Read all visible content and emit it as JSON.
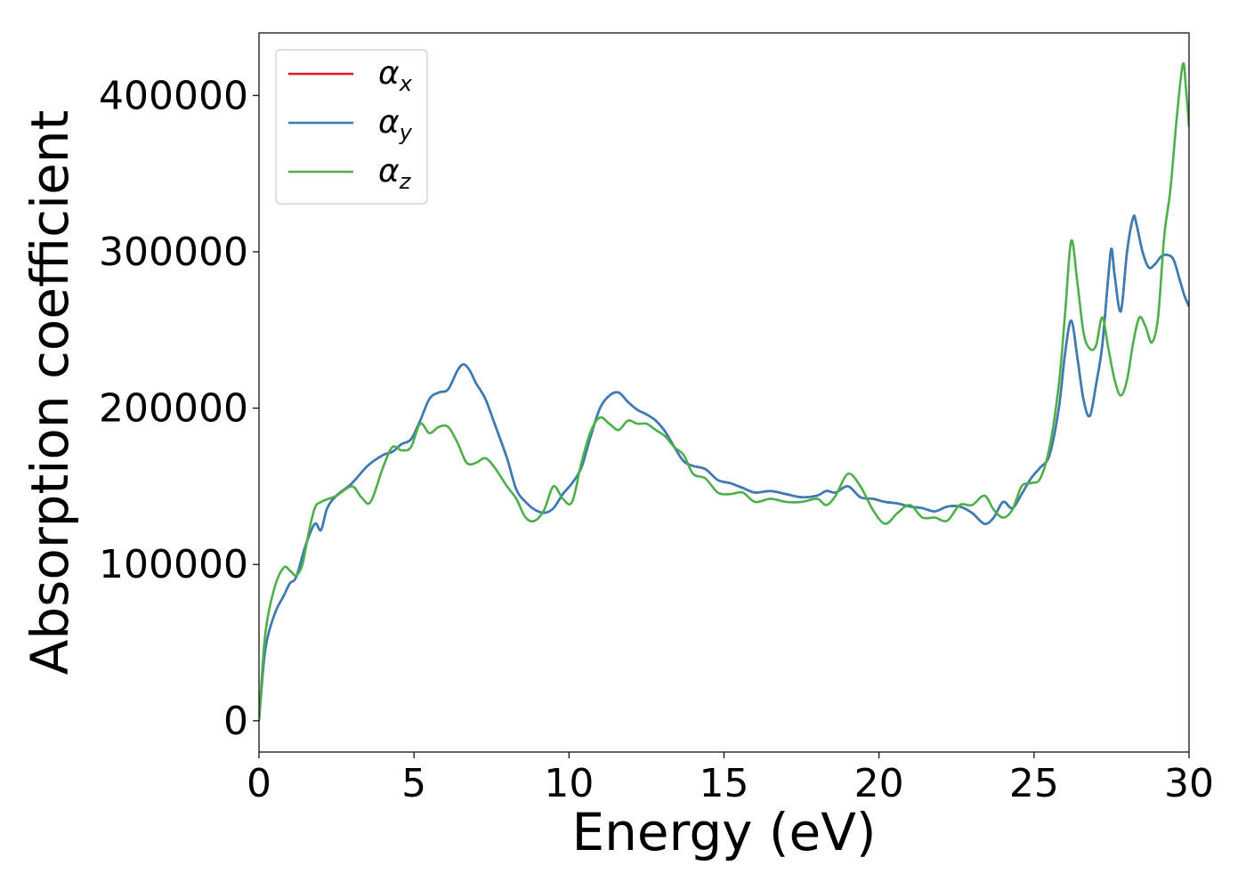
{
  "chart_data": {
    "type": "line",
    "xlabel": "Energy (eV)",
    "ylabel": "Absorption coefficient",
    "xlim": [
      0,
      30
    ],
    "ylim": [
      -20000,
      440000
    ],
    "xticks": [
      0,
      5,
      10,
      15,
      20,
      25,
      30
    ],
    "xtick_labels": [
      "0",
      "5",
      "10",
      "15",
      "20",
      "25",
      "30"
    ],
    "yticks": [
      0,
      100000,
      200000,
      300000,
      400000
    ],
    "ytick_labels": [
      "0",
      "100000",
      "200000",
      "300000",
      "400000"
    ],
    "grid": false,
    "legend_position": "top-left",
    "series": [
      {
        "name": "α",
        "sub": "x",
        "color": "#e41a1c",
        "x": [
          0,
          0.2,
          0.5,
          0.8,
          1.0,
          1.2,
          1.5,
          1.8,
          2.0,
          2.2,
          2.5,
          3.0,
          3.5,
          4.0,
          4.3,
          4.6,
          4.9,
          5.2,
          5.5,
          5.8,
          6.1,
          6.4,
          6.6,
          6.8,
          7.0,
          7.3,
          7.6,
          8.0,
          8.3,
          8.6,
          8.9,
          9.2,
          9.5,
          9.8,
          10.1,
          10.4,
          10.7,
          11.0,
          11.3,
          11.6,
          11.9,
          12.2,
          12.5,
          12.8,
          13.1,
          13.4,
          13.7,
          14.0,
          14.4,
          14.8,
          15.2,
          15.6,
          16.0,
          16.5,
          17.0,
          17.5,
          18.0,
          18.3,
          18.6,
          19.0,
          19.4,
          19.8,
          20.2,
          20.6,
          21.0,
          21.4,
          21.8,
          22.2,
          22.6,
          23.0,
          23.4,
          23.7,
          24.0,
          24.3,
          24.6,
          24.9,
          25.2,
          25.5,
          25.8,
          26.0,
          26.2,
          26.4,
          26.6,
          26.8,
          27.0,
          27.2,
          27.4,
          27.5,
          27.6,
          27.8,
          28.0,
          28.2,
          28.3,
          28.5,
          28.7,
          28.9,
          29.1,
          29.3,
          29.5,
          29.7,
          29.85,
          30.0
        ],
        "y": [
          0,
          45000,
          68000,
          80000,
          88000,
          92000,
          112000,
          126000,
          122000,
          136000,
          144000,
          152000,
          163000,
          170000,
          172000,
          177000,
          180000,
          192000,
          206000,
          210000,
          212000,
          224000,
          228000,
          224000,
          216000,
          206000,
          190000,
          168000,
          148000,
          140000,
          135000,
          133000,
          136000,
          145000,
          152000,
          162000,
          182000,
          200000,
          208000,
          210000,
          204000,
          199000,
          196000,
          192000,
          185000,
          175000,
          166000,
          163000,
          161000,
          154000,
          152000,
          149000,
          146000,
          147000,
          145000,
          143000,
          144000,
          147000,
          146000,
          150000,
          143000,
          142000,
          140000,
          139000,
          137000,
          136000,
          134000,
          137000,
          137000,
          133000,
          126000,
          130000,
          140000,
          136000,
          145000,
          155000,
          162000,
          170000,
          200000,
          235000,
          256000,
          232000,
          205000,
          195000,
          215000,
          240000,
          285000,
          302000,
          285000,
          262000,
          300000,
          322000,
          318000,
          300000,
          290000,
          292000,
          297000,
          298000,
          295000,
          282000,
          272000,
          265000
        ]
      },
      {
        "name": "α",
        "sub": "y",
        "color": "#377eb8",
        "x": [
          0,
          0.2,
          0.5,
          0.8,
          1.0,
          1.2,
          1.5,
          1.8,
          2.0,
          2.2,
          2.5,
          3.0,
          3.5,
          4.0,
          4.3,
          4.6,
          4.9,
          5.2,
          5.5,
          5.8,
          6.1,
          6.4,
          6.6,
          6.8,
          7.0,
          7.3,
          7.6,
          8.0,
          8.3,
          8.6,
          8.9,
          9.2,
          9.5,
          9.8,
          10.1,
          10.4,
          10.7,
          11.0,
          11.3,
          11.6,
          11.9,
          12.2,
          12.5,
          12.8,
          13.1,
          13.4,
          13.7,
          14.0,
          14.4,
          14.8,
          15.2,
          15.6,
          16.0,
          16.5,
          17.0,
          17.5,
          18.0,
          18.3,
          18.6,
          19.0,
          19.4,
          19.8,
          20.2,
          20.6,
          21.0,
          21.4,
          21.8,
          22.2,
          22.6,
          23.0,
          23.4,
          23.7,
          24.0,
          24.3,
          24.6,
          24.9,
          25.2,
          25.5,
          25.8,
          26.0,
          26.2,
          26.4,
          26.6,
          26.8,
          27.0,
          27.2,
          27.4,
          27.5,
          27.6,
          27.8,
          28.0,
          28.2,
          28.3,
          28.5,
          28.7,
          28.9,
          29.1,
          29.3,
          29.5,
          29.7,
          29.85,
          30.0
        ],
        "y": [
          0,
          45000,
          68000,
          80000,
          88000,
          92000,
          112000,
          126000,
          122000,
          136000,
          144000,
          152000,
          163000,
          170000,
          172000,
          177000,
          180000,
          192000,
          206000,
          210000,
          212000,
          224000,
          228000,
          224000,
          216000,
          206000,
          190000,
          168000,
          148000,
          140000,
          135000,
          133000,
          136000,
          145000,
          152000,
          162000,
          182000,
          200000,
          208000,
          210000,
          204000,
          199000,
          196000,
          192000,
          185000,
          175000,
          166000,
          163000,
          161000,
          154000,
          152000,
          149000,
          146000,
          147000,
          145000,
          143000,
          144000,
          147000,
          146000,
          150000,
          143000,
          142000,
          140000,
          139000,
          137000,
          136000,
          134000,
          137000,
          137000,
          133000,
          126000,
          130000,
          140000,
          136000,
          145000,
          155000,
          162000,
          170000,
          200000,
          235000,
          256000,
          232000,
          205000,
          195000,
          215000,
          240000,
          285000,
          302000,
          285000,
          262000,
          300000,
          322000,
          318000,
          300000,
          290000,
          292000,
          297000,
          298000,
          295000,
          282000,
          272000,
          265000
        ]
      },
      {
        "name": "α",
        "sub": "z",
        "color": "#4daf4a",
        "x": [
          0,
          0.2,
          0.5,
          0.8,
          1.0,
          1.2,
          1.4,
          1.6,
          1.8,
          2.0,
          2.5,
          3.0,
          3.3,
          3.6,
          4.0,
          4.3,
          4.6,
          4.9,
          5.2,
          5.5,
          5.8,
          6.1,
          6.4,
          6.7,
          7.0,
          7.3,
          7.6,
          8.0,
          8.3,
          8.6,
          8.9,
          9.2,
          9.5,
          9.8,
          10.1,
          10.4,
          10.7,
          11.0,
          11.3,
          11.6,
          11.9,
          12.2,
          12.5,
          12.8,
          13.1,
          13.4,
          13.7,
          14.0,
          14.4,
          14.8,
          15.2,
          15.6,
          16.0,
          16.5,
          17.0,
          17.5,
          18.0,
          18.3,
          18.6,
          19.0,
          19.4,
          19.8,
          20.2,
          20.6,
          21.0,
          21.4,
          21.8,
          22.2,
          22.6,
          23.0,
          23.4,
          23.7,
          24.0,
          24.3,
          24.6,
          24.9,
          25.2,
          25.5,
          25.8,
          26.0,
          26.2,
          26.4,
          26.6,
          26.8,
          27.0,
          27.2,
          27.4,
          27.6,
          27.8,
          28.0,
          28.2,
          28.4,
          28.6,
          28.8,
          29.0,
          29.2,
          29.4,
          29.6,
          29.8,
          29.9,
          30.0
        ],
        "y": [
          0,
          55000,
          85000,
          98000,
          96000,
          93000,
          100000,
          120000,
          136000,
          140000,
          144000,
          150000,
          143000,
          140000,
          162000,
          175000,
          173000,
          175000,
          190000,
          184000,
          188000,
          188000,
          178000,
          165000,
          165000,
          168000,
          162000,
          150000,
          142000,
          130000,
          128000,
          135000,
          150000,
          142000,
          140000,
          165000,
          185000,
          194000,
          190000,
          186000,
          192000,
          190000,
          190000,
          186000,
          182000,
          175000,
          170000,
          158000,
          155000,
          146000,
          145000,
          146000,
          140000,
          142000,
          140000,
          140000,
          142000,
          138000,
          144000,
          158000,
          150000,
          135000,
          126000,
          133000,
          138000,
          130000,
          130000,
          128000,
          138000,
          138000,
          144000,
          135000,
          130000,
          135000,
          150000,
          152000,
          155000,
          175000,
          215000,
          260000,
          307000,
          280000,
          248000,
          238000,
          240000,
          258000,
          238000,
          218000,
          208000,
          218000,
          242000,
          258000,
          252000,
          242000,
          258000,
          310000,
          340000,
          385000,
          420000,
          405000,
          380000
        ]
      }
    ]
  }
}
